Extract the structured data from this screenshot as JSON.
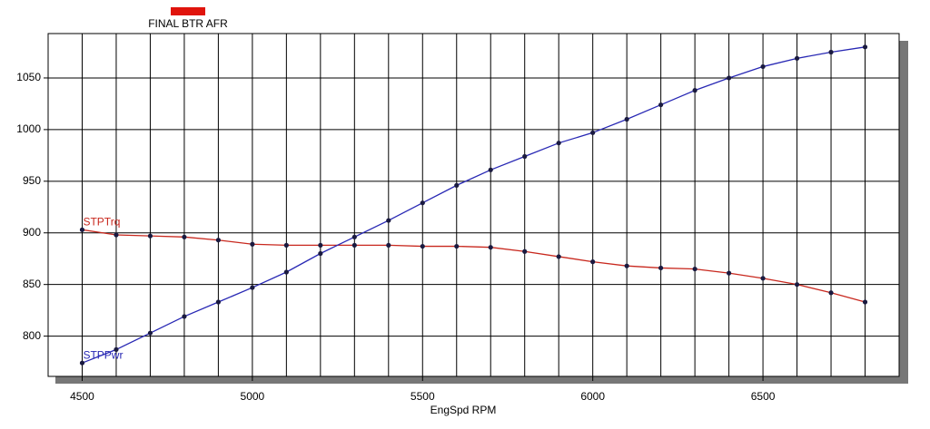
{
  "chart_data": {
    "type": "line",
    "legend": {
      "label": "FINAL BTR AFR",
      "color": "#e0140c"
    },
    "xlabel": "EngSpd RPM",
    "x": [
      4500,
      4600,
      4700,
      4800,
      4900,
      5000,
      5100,
      5200,
      5300,
      5400,
      5500,
      5600,
      5700,
      5800,
      5900,
      6000,
      6100,
      6200,
      6300,
      6400,
      6500,
      6600,
      6700,
      6800
    ],
    "series": [
      {
        "name": "STPTrq",
        "color": "#c8281e",
        "values": [
          903,
          898,
          897,
          896,
          893,
          889,
          888,
          888,
          888,
          888,
          887,
          887,
          886,
          882,
          877,
          872,
          868,
          866,
          865,
          861,
          856,
          850,
          842,
          833
        ]
      },
      {
        "name": "STPPwr",
        "color": "#2828b4",
        "values": [
          774,
          787,
          803,
          819,
          833,
          847,
          862,
          880,
          896,
          912,
          929,
          946,
          961,
          974,
          987,
          997,
          1010,
          1024,
          1038,
          1050,
          1061,
          1069,
          1075,
          1080
        ]
      }
    ],
    "xlim": [
      4400,
      6900
    ],
    "ylim": [
      761,
      1093
    ],
    "xticks": [
      4500,
      5000,
      5500,
      6000,
      6500
    ],
    "xgrid": [
      4400,
      4500,
      4600,
      4700,
      4800,
      4900,
      5000,
      5100,
      5200,
      5300,
      5400,
      5500,
      5600,
      5700,
      5800,
      5900,
      6000,
      6100,
      6200,
      6300,
      6400,
      6500,
      6600,
      6700,
      6800,
      6900
    ],
    "yticks": [
      800,
      850,
      900,
      950,
      1000,
      1050
    ],
    "grid": true
  }
}
